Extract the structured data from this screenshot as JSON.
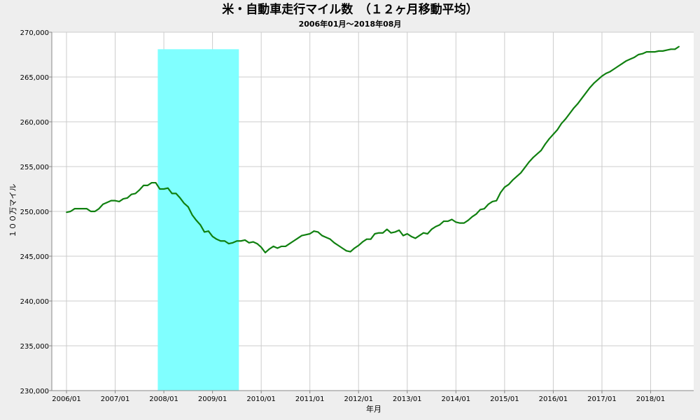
{
  "chart_data": {
    "type": "line",
    "title": "米・自動車走行マイル数　（１２ヶ月移動平均）",
    "subtitle": "2006年01月～2018年08月",
    "xlabel": "年月",
    "ylabel": "１００万マイル",
    "ylim": [
      230000,
      270000
    ],
    "y_ticks": [
      "230,000",
      "235,000",
      "240,000",
      "245,000",
      "250,000",
      "255,000",
      "260,000",
      "265,000",
      "270,000"
    ],
    "x_ticks": [
      "2006/01",
      "2007/01",
      "2008/01",
      "2009/01",
      "2010/01",
      "2011/01",
      "2012/01",
      "2013/01",
      "2014/01",
      "2015/01",
      "2016/01",
      "2017/01",
      "2018/01"
    ],
    "grid": true,
    "colors": {
      "line": "#108010",
      "shade": "#80ffff",
      "grid": "#cccccc",
      "plot_bg": "#ffffff"
    },
    "recession_shade": {
      "start": "2007/12",
      "end": "2009/06",
      "top": 268100
    },
    "series": [
      {
        "name": "",
        "start": "2006/01",
        "values": [
          249900,
          250000,
          250300,
          250300,
          250300,
          250300,
          250000,
          250000,
          250300,
          250800,
          251000,
          251200,
          251200,
          251100,
          251400,
          251500,
          251900,
          252000,
          252400,
          252900,
          252900,
          253200,
          253200,
          252500,
          252500,
          252600,
          252000,
          252000,
          251500,
          250900,
          250500,
          249600,
          249000,
          248500,
          247700,
          247800,
          247200,
          246900,
          246700,
          246700,
          246400,
          246500,
          246700,
          246700,
          246800,
          246500,
          246600,
          246400,
          246000,
          245400,
          245800,
          246100,
          245900,
          246100,
          246100,
          246400,
          246700,
          247000,
          247300,
          247400,
          247500,
          247800,
          247700,
          247300,
          247100,
          246900,
          246500,
          246200,
          245900,
          245600,
          245500,
          245900,
          246200,
          246600,
          246900,
          246900,
          247500,
          247600,
          247600,
          248000,
          247600,
          247700,
          247900,
          247300,
          247500,
          247200,
          247000,
          247300,
          247600,
          247500,
          248000,
          248300,
          248500,
          248900,
          248900,
          249100,
          248800,
          248700,
          248700,
          249000,
          249400,
          249700,
          250200,
          250300,
          250800,
          251100,
          251200,
          252100,
          252700,
          253000,
          253500,
          253900,
          254300,
          254900,
          255500,
          256000,
          256400,
          256800,
          257500,
          258100,
          258600,
          259100,
          259800,
          260300,
          260900,
          261500,
          262000,
          262600,
          263200,
          263800,
          264300,
          264700,
          265100,
          265400,
          265600,
          265900,
          266200,
          266500,
          266800,
          267000,
          267200,
          267500,
          267600,
          267800,
          267800,
          267800,
          267900,
          267900,
          268000,
          268100,
          268100,
          268400
        ]
      }
    ]
  }
}
